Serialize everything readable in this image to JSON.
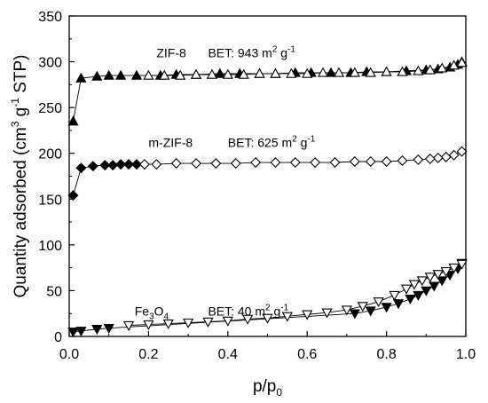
{
  "chart_data": {
    "type": "scatter",
    "xlabel": "p/p0",
    "xlabel_parts": {
      "base": "p/p",
      "sub": "0"
    },
    "ylabel": "Quantity adsorbed (cm3 g-1 STP)",
    "ylabel_parts": {
      "pre": "Quantity adsorbed (cm",
      "sup1": "3",
      "mid": " g",
      "sup2": "-1",
      "post": " STP)"
    },
    "xlim": [
      0.0,
      1.0
    ],
    "ylim": [
      0,
      350
    ],
    "xticks": [
      0.0,
      0.2,
      0.4,
      0.6,
      0.8,
      1.0
    ],
    "xtick_labels": [
      "0.0",
      "0.2",
      "0.4",
      "0.6",
      "0.8",
      "1.0"
    ],
    "yticks": [
      0,
      50,
      100,
      150,
      200,
      250,
      300,
      350
    ],
    "ytick_labels": [
      "0",
      "50",
      "100",
      "150",
      "200",
      "250",
      "300",
      "350"
    ],
    "grid": false,
    "annotations": [
      {
        "name": "zif8-label",
        "text": "ZIF-8",
        "x": 0.22,
        "y": 305
      },
      {
        "name": "zif8-bet",
        "text": "BET: 943 m2 g-1",
        "parts": {
          "pre": "BET: 943 m",
          "sup1": "2",
          "mid": " g",
          "sup2": "-1"
        },
        "x": 0.35,
        "y": 305
      },
      {
        "name": "mzif8-label",
        "text": "m-ZIF-8",
        "x": 0.2,
        "y": 207
      },
      {
        "name": "mzif8-bet",
        "text": "BET: 625 m2 g-1",
        "parts": {
          "pre": "BET: 625 m",
          "sup1": "2",
          "mid": " g",
          "sup2": "-1"
        },
        "x": 0.4,
        "y": 207
      },
      {
        "name": "fe3o4-label",
        "text": "Fe3O4",
        "parts": {
          "pre": "Fe",
          "sub1": "3",
          "mid": "O",
          "sub2": "4"
        },
        "x": 0.165,
        "y": 23
      },
      {
        "name": "fe3o4-bet",
        "text": "BET: 40 m2 g-1",
        "parts": {
          "pre": "BET: 40 m",
          "sup1": "2",
          "mid": " g",
          "sup2": "-1"
        },
        "x": 0.35,
        "y": 23
      }
    ],
    "series": [
      {
        "name": "ZIF-8 adsorption",
        "marker": "triangle-up",
        "fill": "#000000",
        "x": [
          0.01,
          0.03,
          0.07,
          0.1,
          0.13,
          0.17,
          0.23,
          0.27,
          0.32,
          0.38,
          0.43,
          0.48,
          0.52,
          0.57,
          0.61,
          0.66,
          0.71,
          0.75,
          0.8,
          0.85,
          0.9,
          0.93,
          0.96,
          0.98,
          0.99
        ],
        "y": [
          235,
          282,
          284,
          285,
          285,
          285,
          285,
          286,
          286,
          287,
          287,
          287,
          287,
          288,
          288,
          288,
          288,
          289,
          289,
          290,
          291,
          292,
          294,
          297,
          300
        ]
      },
      {
        "name": "ZIF-8 desorption",
        "marker": "triangle-up",
        "fill": "#ffffff",
        "x": [
          0.99,
          0.97,
          0.94,
          0.91,
          0.88,
          0.84,
          0.8,
          0.76,
          0.72,
          0.68,
          0.64,
          0.6,
          0.56,
          0.52,
          0.48,
          0.44,
          0.4,
          0.36,
          0.32,
          0.28,
          0.24,
          0.2
        ],
        "y": [
          299,
          296,
          293,
          291,
          290,
          289,
          289,
          288,
          288,
          288,
          288,
          287,
          287,
          287,
          287,
          286,
          286,
          286,
          286,
          285,
          285,
          285
        ]
      },
      {
        "name": "m-ZIF-8 adsorption",
        "marker": "diamond",
        "fill": "#000000",
        "x": [
          0.01,
          0.03,
          0.06,
          0.09,
          0.11,
          0.13,
          0.15,
          0.17
        ],
        "y": [
          154,
          184,
          186,
          187,
          187,
          188,
          188,
          188
        ]
      },
      {
        "name": "m-ZIF-8 desorption",
        "marker": "diamond",
        "fill": "#ffffff",
        "x": [
          0.99,
          0.97,
          0.95,
          0.93,
          0.91,
          0.88,
          0.84,
          0.8,
          0.76,
          0.72,
          0.67,
          0.62,
          0.57,
          0.52,
          0.47,
          0.42,
          0.37,
          0.32,
          0.27,
          0.22,
          0.19
        ],
        "y": [
          202,
          198,
          196,
          195,
          194,
          193,
          192,
          191,
          191,
          191,
          190,
          190,
          190,
          190,
          190,
          189,
          189,
          189,
          189,
          188,
          188
        ]
      },
      {
        "name": "Fe3O4 adsorption",
        "marker": "triangle-down",
        "fill": "#000000",
        "x": [
          0.01,
          0.03,
          0.07,
          0.1,
          0.72,
          0.76,
          0.8,
          0.83,
          0.86,
          0.88,
          0.9,
          0.92,
          0.94,
          0.96,
          0.98,
          0.99
        ],
        "y": [
          5,
          6,
          8,
          9,
          25,
          28,
          32,
          36,
          41,
          45,
          50,
          55,
          61,
          67,
          74,
          80
        ]
      },
      {
        "name": "Fe3O4 desorption",
        "marker": "triangle-down",
        "fill": "#ffffff",
        "x": [
          0.99,
          0.97,
          0.95,
          0.93,
          0.91,
          0.89,
          0.87,
          0.85,
          0.82,
          0.78,
          0.74,
          0.7,
          0.65,
          0.6,
          0.55,
          0.5,
          0.45,
          0.4,
          0.35,
          0.3,
          0.25,
          0.2,
          0.15
        ],
        "y": [
          79,
          75,
          71,
          68,
          65,
          61,
          57,
          52,
          45,
          38,
          33,
          29,
          26,
          24,
          22,
          20,
          19,
          17,
          16,
          15,
          14,
          13,
          12
        ]
      }
    ]
  }
}
